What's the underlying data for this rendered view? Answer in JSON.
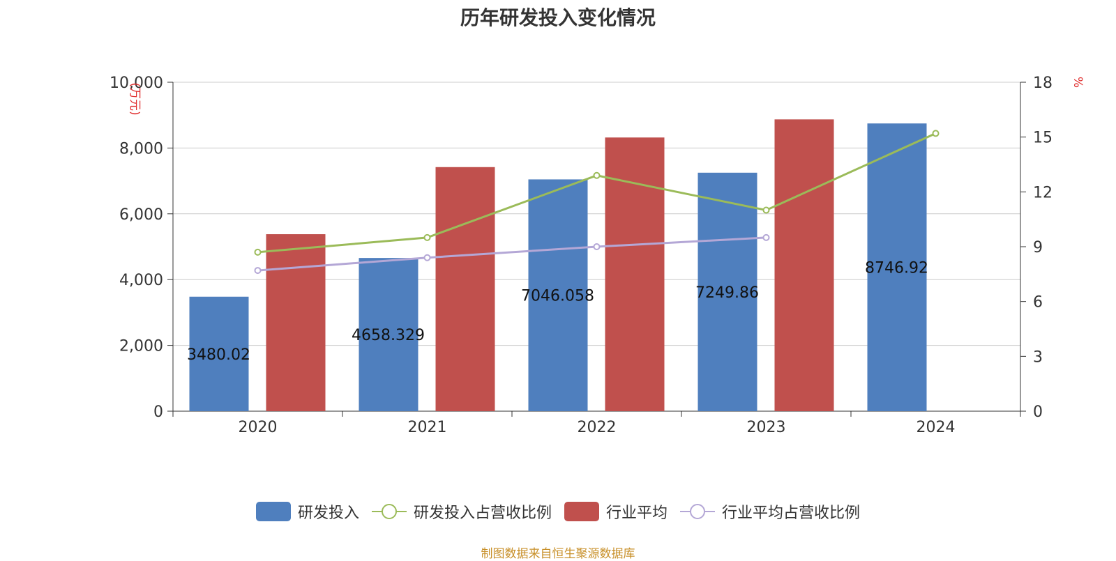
{
  "chart_data": {
    "type": "bar",
    "title": "历年研发投入变化情况",
    "categories": [
      "2020",
      "2021",
      "2022",
      "2023",
      "2024"
    ],
    "y_left": {
      "unit_label": "(万元)",
      "min": 0,
      "max": 10000,
      "ticks": [
        "0",
        "2,000",
        "4,000",
        "6,000",
        "8,000",
        "10,000"
      ],
      "tick_values": [
        0,
        2000,
        4000,
        6000,
        8000,
        10000
      ]
    },
    "y_right": {
      "unit_label": "%",
      "min": 0,
      "max": 18,
      "ticks": [
        "0",
        "3",
        "6",
        "9",
        "12",
        "15",
        "18"
      ],
      "tick_values": [
        0,
        3,
        6,
        9,
        12,
        15,
        18
      ]
    },
    "grid": true,
    "legend_position": "bottom",
    "series": [
      {
        "name": "研发投入",
        "type": "bar",
        "axis": "left",
        "color": "#4f7fbe",
        "values": [
          3480.02,
          4658.329,
          7046.058,
          7249.86,
          8746.92
        ],
        "labels": [
          "3480.02",
          "4658.329",
          "7046.058",
          "7249.86",
          "8746.92"
        ]
      },
      {
        "name": "研发投入占营收比例",
        "type": "line",
        "axis": "right",
        "color": "#9bbb59",
        "values": [
          8.7,
          9.5,
          12.9,
          11.0,
          15.2
        ]
      },
      {
        "name": "行业平均",
        "type": "bar",
        "axis": "left",
        "color": "#c0504d",
        "values": [
          5380,
          7420,
          8320,
          8870,
          null
        ]
      },
      {
        "name": "行业平均占营收比例",
        "type": "line",
        "axis": "right",
        "color": "#b4a7d6",
        "values": [
          7.7,
          8.4,
          9.0,
          9.5,
          null
        ]
      }
    ]
  },
  "source_text": "制图数据来自恒生聚源数据库"
}
